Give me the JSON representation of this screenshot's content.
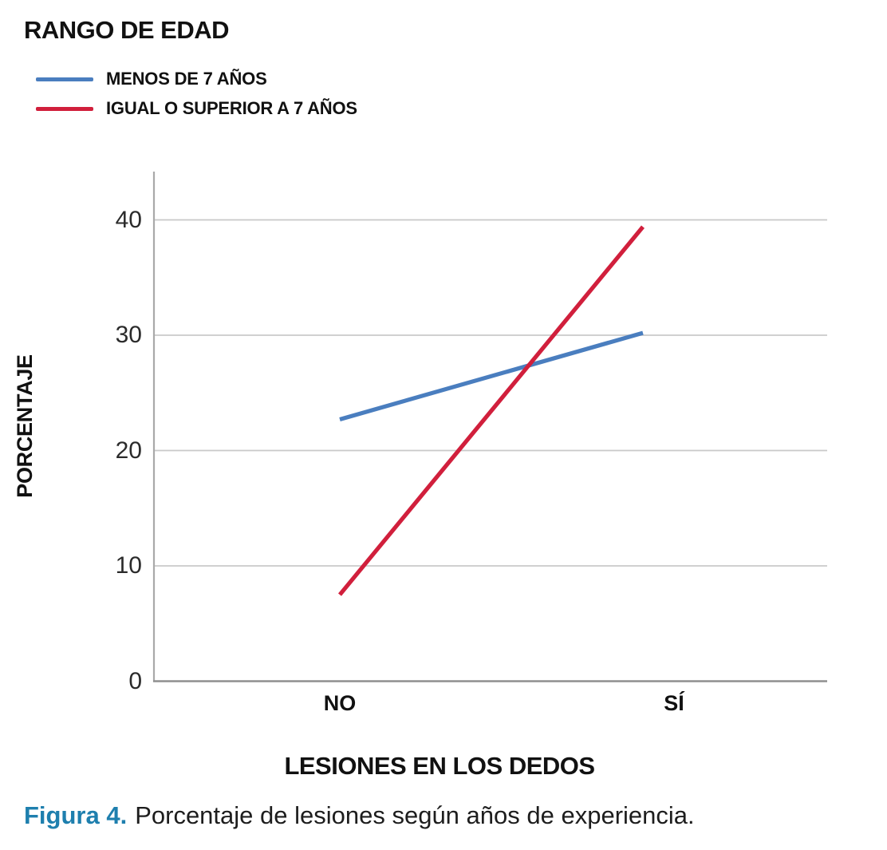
{
  "chart_data": {
    "type": "line",
    "title": "RANGO DE EDAD",
    "categories": [
      "NO",
      "SÍ"
    ],
    "series": [
      {
        "name": "MENOS DE 7 AÑOS",
        "color": "#4a7ebf",
        "values": [
          22.7,
          30.2
        ]
      },
      {
        "name": "IGUAL O SUPERIOR A 7 AÑOS",
        "color": "#d11f3c",
        "values": [
          7.5,
          39.4
        ]
      }
    ],
    "xlabel": "LESIONES EN LOS DEDOS",
    "ylabel": "PORCENTAJE",
    "ylim": [
      0,
      44
    ],
    "yticks": [
      0,
      10,
      20,
      30,
      40
    ],
    "grid": "horizontal",
    "grid_color": "#c9c9c9",
    "axis_color": "#a9a9a9",
    "legend_position": "top-left"
  },
  "caption": {
    "label": "Figura 4.",
    "text": "Porcentaje de lesiones según años de experiencia.",
    "label_color": "#1e7fae"
  }
}
